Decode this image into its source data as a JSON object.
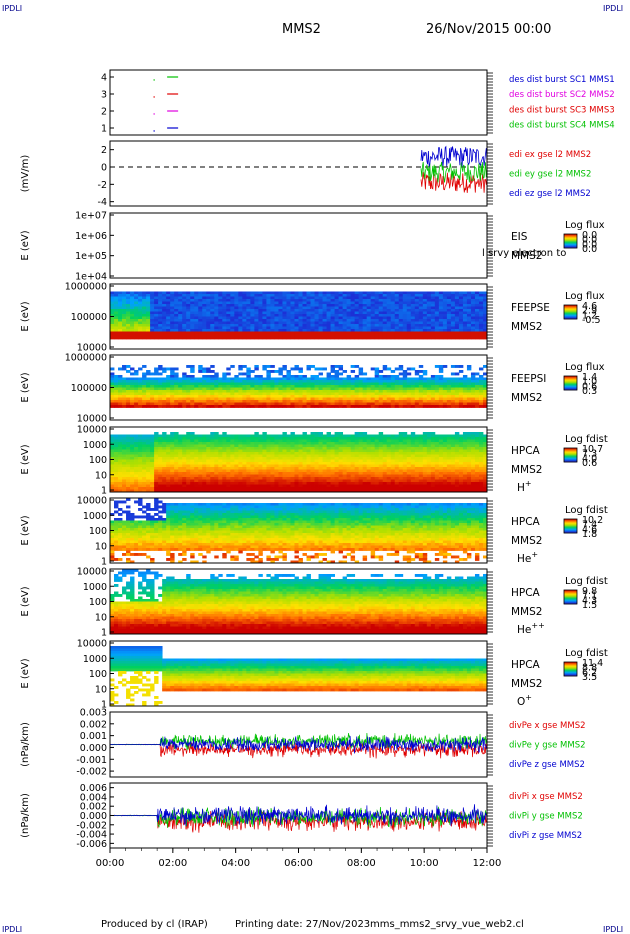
{
  "header": {
    "corner_left": "IPDLI",
    "corner_right": "IPDLI",
    "spacecraft": "MMS2",
    "date": "26/Nov/2015 00:00"
  },
  "footer": {
    "produced_by": "Produced by cl (IRAP)",
    "printing_date": "Printing date: 27/Nov/2023",
    "file": "mms_mms2_srvy_vue_web2.cl",
    "corner_left": "IPDLI",
    "corner_right": "IPDLI"
  },
  "time_axis": {
    "ticks": [
      "00:00",
      "02:00",
      "04:00",
      "06:00",
      "08:00",
      "10:00",
      "12:00"
    ],
    "range_hours": [
      0,
      12
    ]
  },
  "colors": {
    "red": "#e00000",
    "green": "#00c000",
    "blue": "#0000d0",
    "magenta": "#e000e0",
    "spec_lo": "#0000c8",
    "spec_hi": "#c80000"
  },
  "chart_data": [
    {
      "id": "burst",
      "type": "line",
      "ylabel": "",
      "yticks": [
        "4",
        "3",
        "2",
        "1"
      ],
      "ylim": [
        0.5,
        4.5
      ],
      "legend": [
        {
          "text": "des dist burst SC1 MMS1",
          "color": "#0000d0"
        },
        {
          "text": "des dist burst SC2 MMS2",
          "color": "#e000e0"
        },
        {
          "text": "des dist burst SC3 MMS3",
          "color": "#e00000"
        },
        {
          "text": "des dist burst SC4 MMS4",
          "color": "#00c000"
        }
      ],
      "segments": [
        {
          "sc": 4,
          "t0": 1.5,
          "t1": 1.85,
          "color": "#00c000"
        },
        {
          "sc": 3,
          "t0": 1.5,
          "t1": 1.85,
          "color": "#e00000"
        },
        {
          "sc": 2,
          "t0": 1.5,
          "t1": 1.85,
          "color": "#e000e0"
        },
        {
          "sc": 1,
          "t0": 1.5,
          "t1": 1.85,
          "color": "#0000d0"
        }
      ]
    },
    {
      "id": "edi",
      "type": "line",
      "ylabel": "(mV/m)",
      "yticks": [
        "2",
        "0",
        "-2",
        "-4"
      ],
      "ylim": [
        -4.5,
        3
      ],
      "legend": [
        {
          "text": "edi ex gse l2 MMS2",
          "color": "#e00000"
        },
        {
          "text": "edi ey gse l2 MMS2",
          "color": "#00c000"
        },
        {
          "text": "edi ez gse l2 MMS2",
          "color": "#0000d0"
        }
      ],
      "data_window": [
        9.9,
        12.0
      ]
    },
    {
      "id": "eis",
      "type": "heatmap",
      "ylabel": "E (eV)",
      "yticks": [
        "1e+07",
        "1e+06",
        "1e+05",
        "1e+04"
      ],
      "ylim_log": [
        4,
        7
      ],
      "side_labels": [
        "EIS",
        "MMS2"
      ],
      "overlay_label": "l srvy electron to",
      "colorbar": {
        "title": "Log flux",
        "ticks": [
          "0.0",
          "0.0",
          "0.0",
          "0.0"
        ]
      }
    },
    {
      "id": "feepse",
      "type": "heatmap",
      "ylabel": "E (eV)",
      "yticks": [
        "1000000",
        "100000",
        "10000"
      ],
      "ylim_log": [
        4,
        6
      ],
      "side_labels": [
        "FEEPSE",
        "MMS2"
      ],
      "colorbar": {
        "title": "Log flux",
        "ticks": [
          "4.6",
          "2.9",
          "1.2",
          "-0.5"
        ]
      }
    },
    {
      "id": "feepsi",
      "type": "heatmap",
      "ylabel": "E (eV)",
      "yticks": [
        "1000000",
        "100000",
        "10000"
      ],
      "ylim_log": [
        4,
        6
      ],
      "side_labels": [
        "FEEPSI",
        "MMS2"
      ],
      "colorbar": {
        "title": "Log flux",
        "ticks": [
          "1.4",
          "1.0",
          "0.6",
          "0.3"
        ]
      }
    },
    {
      "id": "hpca_h",
      "type": "heatmap",
      "ylabel": "E (eV)",
      "yticks": [
        "10000",
        "1000",
        "100",
        "10",
        "1"
      ],
      "ylim_log": [
        0,
        4.3
      ],
      "side_labels": [
        "HPCA",
        "MMS2",
        "H+"
      ],
      "colorbar": {
        "title": "Log fdist",
        "ticks": [
          "10.7",
          "7.3",
          "4.0",
          "0.6"
        ]
      }
    },
    {
      "id": "hpca_he",
      "type": "heatmap",
      "ylabel": "E (eV)",
      "yticks": [
        "10000",
        "1000",
        "100",
        "10",
        "1"
      ],
      "ylim_log": [
        0,
        4.3
      ],
      "side_labels": [
        "HPCA",
        "MMS2",
        "He+"
      ],
      "colorbar": {
        "title": "Log fdist",
        "ticks": [
          "10.2",
          "7.4",
          "4.6",
          "1.8"
        ]
      }
    },
    {
      "id": "hpca_hepp",
      "type": "heatmap",
      "ylabel": "E (eV)",
      "yticks": [
        "10000",
        "1000",
        "100",
        "10",
        "1"
      ],
      "ylim_log": [
        0,
        4.3
      ],
      "side_labels": [
        "HPCA",
        "MMS2",
        "He++"
      ],
      "colorbar": {
        "title": "Log fdist",
        "ticks": [
          "9.8",
          "7.1",
          "4.3",
          "1.5"
        ]
      }
    },
    {
      "id": "hpca_o",
      "type": "heatmap",
      "ylabel": "E (eV)",
      "yticks": [
        "10000",
        "1000",
        "100",
        "10",
        "1"
      ],
      "ylim_log": [
        0,
        4.3
      ],
      "side_labels": [
        "HPCA",
        "MMS2",
        "O+"
      ],
      "colorbar": {
        "title": "Log fdist",
        "ticks": [
          "11.4",
          "8.8",
          "6.2",
          "3.5"
        ]
      }
    },
    {
      "id": "divpe",
      "type": "line",
      "ylabel": "(nPa/km)",
      "yticks": [
        "0.003",
        "0.002",
        "0.001",
        "0.000",
        "-0.001",
        "-0.002"
      ],
      "ylim": [
        -0.0025,
        0.003
      ],
      "legend": [
        {
          "text": "divPe x gse MMS2",
          "color": "#e00000"
        },
        {
          "text": "divPe y gse MMS2",
          "color": "#00c000"
        },
        {
          "text": "divPe z gse MMS2",
          "color": "#0000d0"
        }
      ]
    },
    {
      "id": "divpi",
      "type": "line",
      "ylabel": "(nPa/km)",
      "yticks": [
        "0.006",
        "0.004",
        "0.002",
        "0.000",
        "-0.002",
        "-0.004",
        "-0.006"
      ],
      "ylim": [
        -0.007,
        0.007
      ],
      "legend": [
        {
          "text": "divPi x gse MMS2",
          "color": "#e00000"
        },
        {
          "text": "divPi y gse MMS2",
          "color": "#00c000"
        },
        {
          "text": "divPi z gse MMS2",
          "color": "#0000d0"
        }
      ]
    }
  ]
}
